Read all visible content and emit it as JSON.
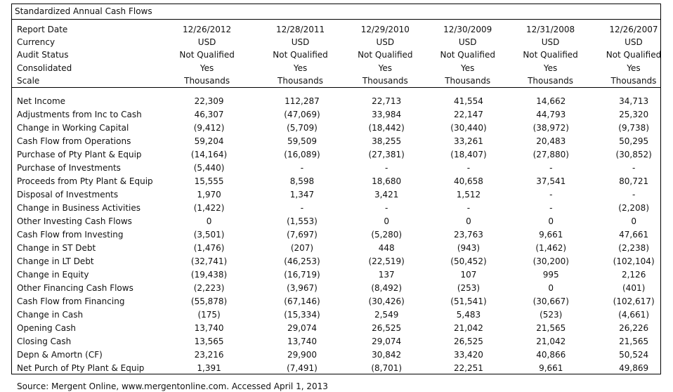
{
  "title": "Standardized Annual Cash Flows",
  "header": [
    {
      "label": "Report Date",
      "values": [
        "12/26/2012",
        "12/28/2011",
        "12/29/2010",
        "12/30/2009",
        "12/31/2008",
        "12/26/2007"
      ]
    },
    {
      "label": "Currency",
      "values": [
        "USD",
        "USD",
        "USD",
        "USD",
        "USD",
        "USD"
      ]
    },
    {
      "label": "Audit Status",
      "values": [
        "Not Qualified",
        "Not Qualified",
        "Not Qualified",
        "Not Qualified",
        "Not Qualified",
        "Not Qualified"
      ]
    },
    {
      "label": "Consolidated",
      "values": [
        "Yes",
        "Yes",
        "Yes",
        "Yes",
        "Yes",
        "Yes"
      ]
    },
    {
      "label": "Scale",
      "values": [
        "Thousands",
        "Thousands",
        "Thousands",
        "Thousands",
        "Thousands",
        "Thousands"
      ]
    }
  ],
  "rows": [
    {
      "label": "Net Income",
      "values": [
        "22,309",
        "112,287",
        "22,713",
        "41,554",
        "14,662",
        "34,713"
      ]
    },
    {
      "label": "Adjustments from Inc to Cash",
      "values": [
        "46,307",
        "(47,069)",
        "33,984",
        "22,147",
        "44,793",
        "25,320"
      ]
    },
    {
      "label": "Change in Working Capital",
      "values": [
        "(9,412)",
        "(5,709)",
        "(18,442)",
        "(30,440)",
        "(38,972)",
        "(9,738)"
      ]
    },
    {
      "label": "Cash Flow from Operations",
      "values": [
        "59,204",
        "59,509",
        "38,255",
        "33,261",
        "20,483",
        "50,295"
      ]
    },
    {
      "label": "Purchase of Pty Plant & Equip",
      "values": [
        "(14,164)",
        "(16,089)",
        "(27,381)",
        "(18,407)",
        "(27,880)",
        "(30,852)"
      ]
    },
    {
      "label": "Purchase of Investments",
      "values": [
        "(5,440)",
        "-",
        "-",
        "-",
        "-",
        "-"
      ]
    },
    {
      "label": "Proceeds from Pty Plant & Equip",
      "values": [
        "15,555",
        "8,598",
        "18,680",
        "40,658",
        "37,541",
        "80,721"
      ]
    },
    {
      "label": "Disposal of Investments",
      "values": [
        "1,970",
        "1,347",
        "3,421",
        "1,512",
        "-",
        "-"
      ]
    },
    {
      "label": "Change in Business Activities",
      "values": [
        "(1,422)",
        "-",
        "-",
        "-",
        "-",
        "(2,208)"
      ]
    },
    {
      "label": "Other Investing Cash Flows",
      "values": [
        "0",
        "(1,553)",
        "0",
        "0",
        "0",
        "0"
      ]
    },
    {
      "label": "Cash Flow from Investing",
      "values": [
        "(3,501)",
        "(7,697)",
        "(5,280)",
        "23,763",
        "9,661",
        "47,661"
      ]
    },
    {
      "label": "Change in ST Debt",
      "values": [
        "(1,476)",
        "(207)",
        "448",
        "(943)",
        "(1,462)",
        "(2,238)"
      ]
    },
    {
      "label": "Change in LT Debt",
      "values": [
        "(32,741)",
        "(46,253)",
        "(22,519)",
        "(50,452)",
        "(30,200)",
        "(102,104)"
      ]
    },
    {
      "label": "Change in Equity",
      "values": [
        "(19,438)",
        "(16,719)",
        "137",
        "107",
        "995",
        "2,126"
      ]
    },
    {
      "label": "Other Financing Cash Flows",
      "values": [
        "(2,223)",
        "(3,967)",
        "(8,492)",
        "(253)",
        "0",
        "(401)"
      ]
    },
    {
      "label": "Cash Flow from Financing",
      "values": [
        "(55,878)",
        "(67,146)",
        "(30,426)",
        "(51,541)",
        "(30,667)",
        "(102,617)"
      ]
    },
    {
      "label": "Change in Cash",
      "values": [
        "(175)",
        "(15,334)",
        "2,549",
        "5,483",
        "(523)",
        "(4,661)"
      ]
    },
    {
      "label": "Opening Cash",
      "values": [
        "13,740",
        "29,074",
        "26,525",
        "21,042",
        "21,565",
        "26,226"
      ]
    },
    {
      "label": "Closing Cash",
      "values": [
        "13,565",
        "13,740",
        "29,074",
        "26,525",
        "21,042",
        "21,565"
      ]
    },
    {
      "label": "Depn & Amortn (CF)",
      "values": [
        "23,216",
        "29,900",
        "30,842",
        "33,420",
        "40,866",
        "50,524"
      ]
    },
    {
      "label": "Net Purch of Pty Plant & Equip",
      "values": [
        "1,391",
        "(7,491)",
        "(8,701)",
        "22,251",
        "9,661",
        "49,869"
      ]
    }
  ],
  "source": "Source:  Mergent Online, www.mergentonline.com. Accessed April 1, 2013"
}
